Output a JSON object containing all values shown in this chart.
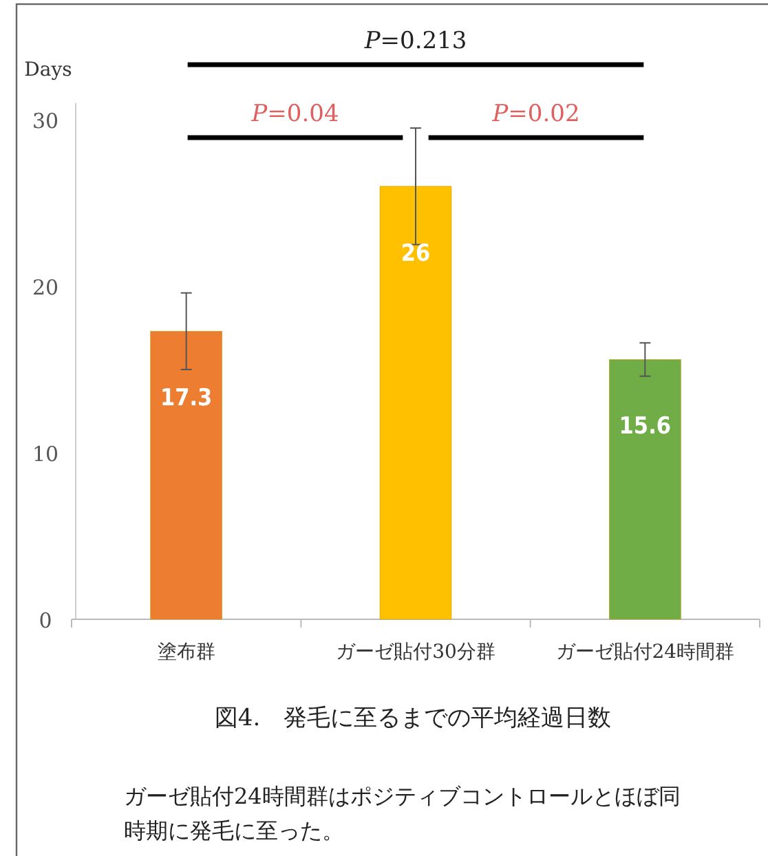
{
  "chart_data": {
    "type": "bar",
    "title": "図4.　発毛に至るまでの平均経過日数",
    "ylabel": "Days",
    "categories": [
      "塗布群",
      "ガーゼ貼付30分群",
      "ガーゼ貼付24時間群"
    ],
    "values": [
      17.3,
      26,
      15.6
    ],
    "colors": [
      "#ed7d31",
      "#ffc000",
      "#70ad47"
    ],
    "errors": [
      2.3,
      3.5,
      1
    ],
    "data_labels": true,
    "ylim": [
      0,
      31
    ],
    "yticks": [
      0,
      10,
      20,
      30
    ],
    "grid": false,
    "annotations": [
      "*P*=0.213",
      "*P*=0.04",
      "*P*=0.02",
      "ガーゼ貼付24時間群はポジティブコントロールとほぼ同時期に発毛に至った。"
    ]
  }
}
